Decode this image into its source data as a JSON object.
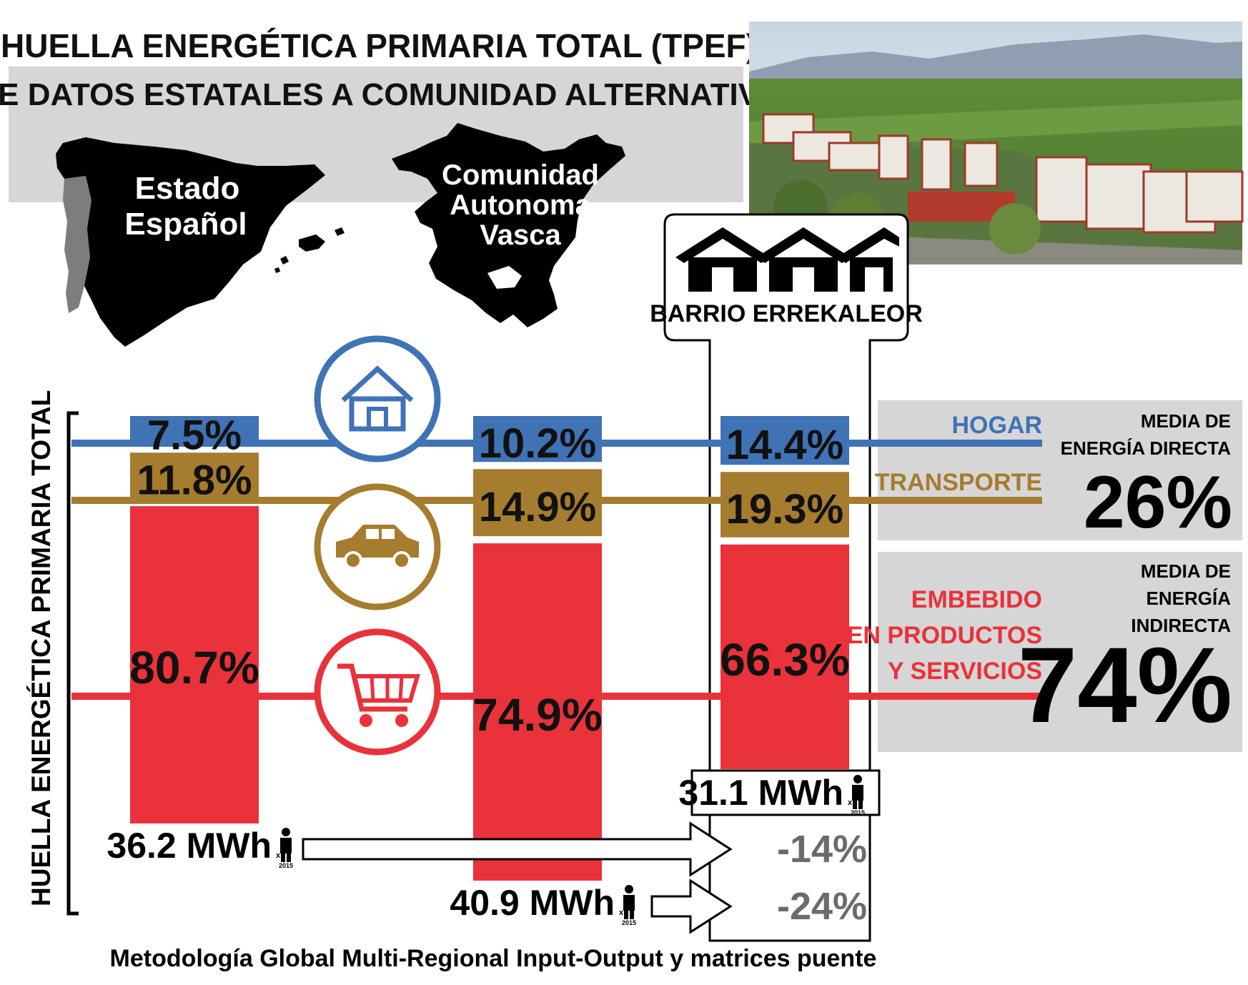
{
  "header": {
    "title": "HUELLA ENERGÉTICA PRIMARIA TOTAL (TPEF)",
    "subtitle": "DE DATOS ESTATALES A COMUNIDAD ALTERNATIVA"
  },
  "maps": {
    "spain_label_1": "Estado",
    "spain_label_2": "Español",
    "basque_label_1": "Comunidad",
    "basque_label_2": "Autonoma",
    "basque_label_3": "Vasca",
    "spain_icon": "spain-map-silhouette",
    "basque_icon": "basque-country-map-silhouette"
  },
  "photo": {
    "icon": "aerial-photo-of-neighborhood"
  },
  "neighborhood": {
    "label": "BARRIO ERREKALEOR",
    "icon": "three-houses-icon"
  },
  "colors": {
    "hogar": "#3f73b5",
    "transporte": "#a67c2e",
    "embebido": "#e9323a",
    "panel": "#d6d6d6",
    "gray_text": "#6b6b6b"
  },
  "chart_data": {
    "type": "bar",
    "ylabel": "HUELLA ENERGÉTICA PRIMARIA TOTAL",
    "categories": [
      "Estado Español",
      "Comunidad Autonoma Vasca",
      "Barrio Errekaleor"
    ],
    "series": [
      {
        "name": "HOGAR",
        "values": [
          7.5,
          10.2,
          14.4
        ],
        "labels": [
          "7.5%",
          "10.2%",
          "14.4%"
        ],
        "icon": "house-icon"
      },
      {
        "name": "TRANSPORTE",
        "values": [
          11.8,
          14.9,
          19.3
        ],
        "labels": [
          "11.8%",
          "14.9%",
          "19.3%"
        ],
        "icon": "car-icon"
      },
      {
        "name": "EMBEBIDO EN PRODUCTOS Y SERVICIOS",
        "values": [
          80.7,
          74.9,
          66.3
        ],
        "labels": [
          "80.7%",
          "74.9%",
          "66.3%"
        ],
        "icon": "shopping-cart-icon"
      }
    ],
    "totals": [
      {
        "value": "36.2 MWh",
        "unit_mark": "x",
        "year": "2015"
      },
      {
        "value": "40.9 MWh",
        "unit_mark": "x",
        "year": "2015"
      },
      {
        "value": "31.1 MWh",
        "unit_mark": "x",
        "year": "2015"
      }
    ],
    "totals_numeric": [
      36.2,
      40.9,
      31.1
    ],
    "reductions": [
      "-14%",
      "-24%"
    ],
    "legend": {
      "hogar": "HOGAR",
      "transporte": "TRANSPORTE",
      "embebido_1": "EMBEBIDO",
      "embebido_2": "EN PRODUCTOS",
      "embebido_3": "Y SERVICIOS"
    },
    "averages": {
      "direct_label_1": "MEDIA DE",
      "direct_label_2": "ENERGÍA DIRECTA",
      "direct_value": "26%",
      "indirect_label_1": "MEDIA DE",
      "indirect_label_2": "ENERGÍA",
      "indirect_label_3": "INDIRECTA",
      "indirect_value": "74%"
    },
    "footer": "Metodología Global Multi-Regional Input-Output y matrices puente"
  }
}
